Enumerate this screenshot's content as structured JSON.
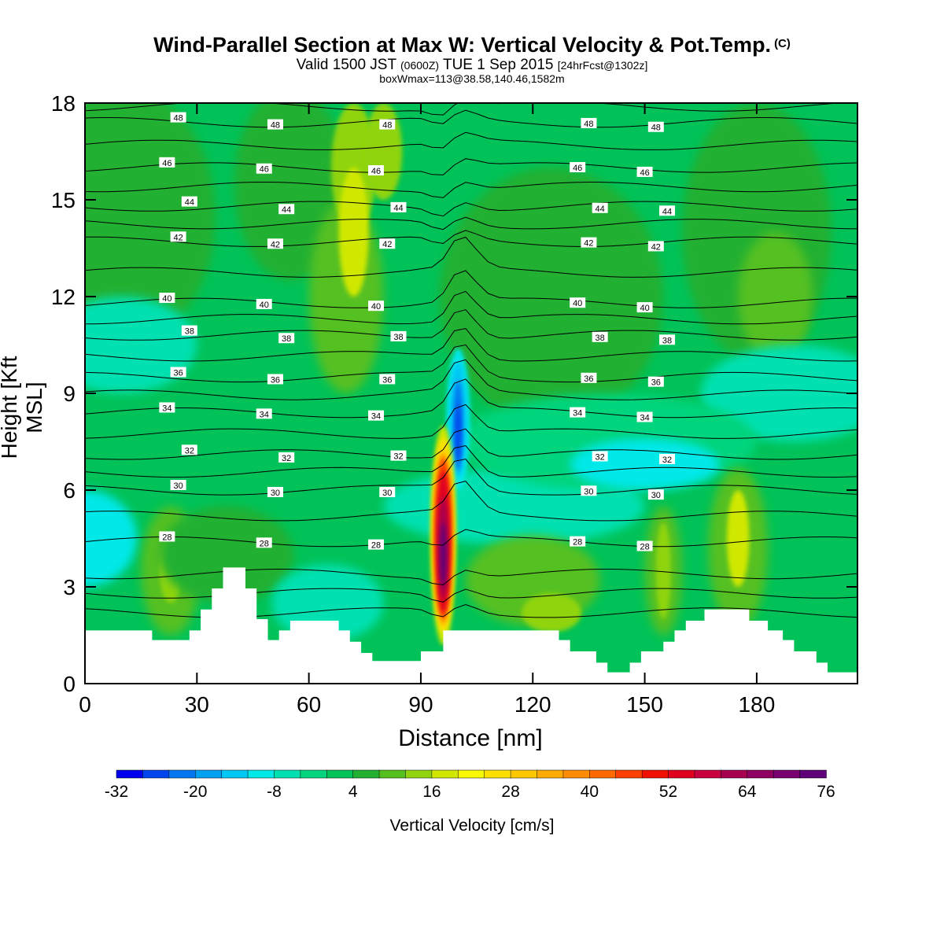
{
  "title": "Wind-Parallel Section at Max W: Vertical Velocity & Pot.Temp.",
  "copyright": "(C)",
  "subtitle_main": "Valid 1500 JST",
  "subtitle_utc": "(0600Z)",
  "subtitle_date": "TUE 1 Sep 2015",
  "subtitle_fcst": "[24hrFcst@1302z]",
  "subtitle2": "boxWmax=113@38.58,140.46,1582m",
  "chart_data": {
    "type": "heatmap",
    "xlabel": "Distance [nm]",
    "ylabel": "Height [Kft MSL]",
    "xlim": [
      0,
      207
    ],
    "ylim": [
      0,
      18
    ],
    "xticks": [
      "0",
      "30",
      "60",
      "90",
      "120",
      "150",
      "180"
    ],
    "yticks": [
      "0",
      "3",
      "6",
      "9",
      "12",
      "15",
      "18"
    ],
    "colorbar": {
      "label": "Vertical Velocity [cm/s]",
      "tick_labels": [
        "-32",
        "-20",
        "-8",
        "4",
        "16",
        "28",
        "40",
        "52",
        "64",
        "76"
      ],
      "levels": [
        -32,
        -28,
        -24,
        -20,
        -16,
        -12,
        -8,
        -4,
        0,
        4,
        8,
        12,
        16,
        20,
        24,
        28,
        32,
        36,
        40,
        44,
        48,
        52,
        56,
        60,
        64,
        68,
        72,
        76
      ],
      "colors": [
        "#0000ee",
        "#0044ee",
        "#0077f0",
        "#00a0f2",
        "#00c8f5",
        "#00e8e8",
        "#00e0b0",
        "#00d47c",
        "#00c258",
        "#22b030",
        "#55c020",
        "#90d410",
        "#d0e800",
        "#f8f800",
        "#ffe000",
        "#ffc800",
        "#ffaa00",
        "#ff8c00",
        "#ff6a00",
        "#ff4000",
        "#f01000",
        "#e00020",
        "#c80040",
        "#a80050",
        "#900060",
        "#780070",
        "#600078"
      ]
    },
    "max_updraft": {
      "x": 96,
      "peak_cm_s": 76,
      "height_kft": 4
    },
    "max_downdraft": {
      "x": 100,
      "peak_cm_s": -32,
      "height_kft": 8
    },
    "theta_contours": [
      {
        "label": "28",
        "height_kft": 4.4
      },
      {
        "label": "30",
        "height_kft": 6.0
      },
      {
        "label": "32",
        "height_kft": 7.1
      },
      {
        "label": "34",
        "height_kft": 8.4
      },
      {
        "label": "36",
        "height_kft": 9.5
      },
      {
        "label": "38",
        "height_kft": 10.8
      },
      {
        "label": "40",
        "height_kft": 11.8
      },
      {
        "label": "42",
        "height_kft": 13.7
      },
      {
        "label": "44",
        "height_kft": 14.8
      },
      {
        "label": "46",
        "height_kft": 16.0
      },
      {
        "label": "48",
        "height_kft": 17.4
      }
    ],
    "terrain_kft": [
      [
        0,
        1.65
      ],
      [
        18,
        1.65
      ],
      [
        18,
        1.35
      ],
      [
        28,
        1.35
      ],
      [
        28,
        1.65
      ],
      [
        31,
        1.65
      ],
      [
        31,
        2.3
      ],
      [
        34,
        2.3
      ],
      [
        34,
        2.95
      ],
      [
        37,
        2.95
      ],
      [
        37,
        3.6
      ],
      [
        43,
        3.6
      ],
      [
        43,
        2.95
      ],
      [
        46,
        2.95
      ],
      [
        46,
        2.0
      ],
      [
        49,
        2.0
      ],
      [
        49,
        1.35
      ],
      [
        52,
        1.35
      ],
      [
        52,
        1.65
      ],
      [
        55,
        1.65
      ],
      [
        55,
        1.95
      ],
      [
        68,
        1.95
      ],
      [
        68,
        1.65
      ],
      [
        71,
        1.65
      ],
      [
        71,
        1.3
      ],
      [
        74,
        1.3
      ],
      [
        74,
        0.95
      ],
      [
        77,
        0.95
      ],
      [
        77,
        0.7
      ],
      [
        90,
        0.7
      ],
      [
        90,
        1.0
      ],
      [
        96,
        1.0
      ],
      [
        96,
        1.65
      ],
      [
        127,
        1.65
      ],
      [
        127,
        1.35
      ],
      [
        130,
        1.35
      ],
      [
        130,
        1.0
      ],
      [
        137,
        1.0
      ],
      [
        137,
        0.65
      ],
      [
        140,
        0.65
      ],
      [
        140,
        0.35
      ],
      [
        146,
        0.35
      ],
      [
        146,
        0.65
      ],
      [
        149,
        0.65
      ],
      [
        149,
        1.0
      ],
      [
        155,
        1.0
      ],
      [
        155,
        1.3
      ],
      [
        158,
        1.3
      ],
      [
        158,
        1.65
      ],
      [
        161,
        1.65
      ],
      [
        161,
        1.95
      ],
      [
        166,
        1.95
      ],
      [
        166,
        2.3
      ],
      [
        178,
        2.3
      ],
      [
        178,
        1.95
      ],
      [
        183,
        1.95
      ],
      [
        183,
        1.65
      ],
      [
        187,
        1.65
      ],
      [
        187,
        1.35
      ],
      [
        190,
        1.35
      ],
      [
        190,
        1.0
      ],
      [
        196,
        1.0
      ],
      [
        196,
        0.65
      ],
      [
        199,
        0.65
      ],
      [
        199,
        0.35
      ],
      [
        207,
        0.35
      ]
    ]
  }
}
